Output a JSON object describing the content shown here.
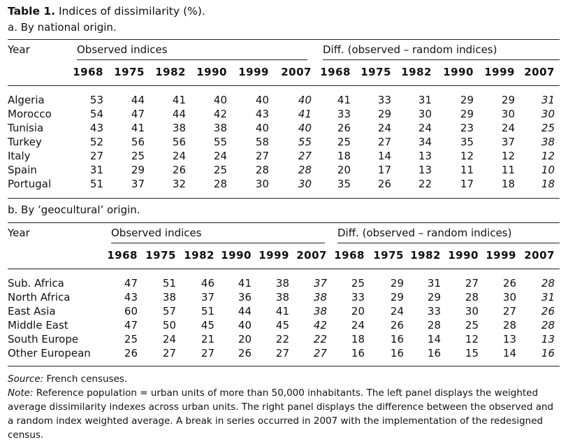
{
  "title": {
    "label": "Table 1.",
    "text": "Indices of dissimilarity (%)."
  },
  "panel_a": {
    "subtitle": "a. By national origin.",
    "col_year": "Year",
    "group_observed": "Observed indices",
    "group_diff": "Diff. (observed – random indices)",
    "years": [
      "1968",
      "1975",
      "1982",
      "1990",
      "1999",
      "2007"
    ],
    "rows": [
      {
        "name": "Algeria",
        "obs": [
          "53",
          "44",
          "41",
          "40",
          "40",
          "40"
        ],
        "diff": [
          "41",
          "33",
          "31",
          "29",
          "29",
          "31"
        ]
      },
      {
        "name": "Morocco",
        "obs": [
          "54",
          "47",
          "44",
          "42",
          "43",
          "41"
        ],
        "diff": [
          "33",
          "29",
          "30",
          "29",
          "30",
          "30"
        ]
      },
      {
        "name": "Tunisia",
        "obs": [
          "43",
          "41",
          "38",
          "38",
          "40",
          "40"
        ],
        "diff": [
          "26",
          "24",
          "24",
          "23",
          "24",
          "25"
        ]
      },
      {
        "name": "Turkey",
        "obs": [
          "52",
          "56",
          "56",
          "55",
          "58",
          "55"
        ],
        "diff": [
          "25",
          "27",
          "34",
          "35",
          "37",
          "38"
        ]
      },
      {
        "name": "Italy",
        "obs": [
          "27",
          "25",
          "24",
          "24",
          "27",
          "27"
        ],
        "diff": [
          "18",
          "14",
          "13",
          "12",
          "12",
          "12"
        ]
      },
      {
        "name": "Spain",
        "obs": [
          "31",
          "29",
          "26",
          "25",
          "28",
          "28"
        ],
        "diff": [
          "20",
          "17",
          "13",
          "11",
          "11",
          "10"
        ]
      },
      {
        "name": "Portugal",
        "obs": [
          "51",
          "37",
          "32",
          "28",
          "30",
          "30"
        ],
        "diff": [
          "35",
          "26",
          "22",
          "17",
          "18",
          "18"
        ]
      }
    ]
  },
  "panel_b": {
    "subtitle": "b. By ’geocultural’ origin.",
    "col_year": "Year",
    "group_observed": "Observed indices",
    "group_diff": "Diff. (observed – random indices)",
    "years": [
      "1968",
      "1975",
      "1982",
      "1990",
      "1999",
      "2007"
    ],
    "rows": [
      {
        "name": "Sub. Africa",
        "obs": [
          "47",
          "51",
          "46",
          "41",
          "38",
          "37"
        ],
        "diff": [
          "25",
          "29",
          "31",
          "27",
          "26",
          "28"
        ]
      },
      {
        "name": "North Africa",
        "obs": [
          "43",
          "38",
          "37",
          "36",
          "38",
          "38"
        ],
        "diff": [
          "33",
          "29",
          "29",
          "28",
          "30",
          "31"
        ]
      },
      {
        "name": "East Asia",
        "obs": [
          "60",
          "57",
          "51",
          "44",
          "41",
          "38"
        ],
        "diff": [
          "20",
          "24",
          "33",
          "30",
          "27",
          "26"
        ]
      },
      {
        "name": "Middle East",
        "obs": [
          "47",
          "50",
          "45",
          "40",
          "45",
          "42"
        ],
        "diff": [
          "24",
          "26",
          "28",
          "25",
          "28",
          "28"
        ]
      },
      {
        "name": "South Europe",
        "obs": [
          "25",
          "24",
          "21",
          "20",
          "22",
          "22"
        ],
        "diff": [
          "18",
          "16",
          "14",
          "12",
          "13",
          "13"
        ]
      },
      {
        "name": "Other European",
        "obs": [
          "26",
          "27",
          "27",
          "26",
          "27",
          "27"
        ],
        "diff": [
          "16",
          "16",
          "16",
          "15",
          "14",
          "16"
        ]
      }
    ]
  },
  "notes": {
    "source_label": "Source:",
    "source_text": "French censuses.",
    "note_label": "Note:",
    "note_text": "Reference population = urban units of more than 50,000 inhabitants. The left panel displays the weighted average dissimilarity indexes across urban units. The right panel displays the difference between the observed and a random index weighted average. A break in series occurred in 2007 with the implementation of the redesigned census."
  }
}
